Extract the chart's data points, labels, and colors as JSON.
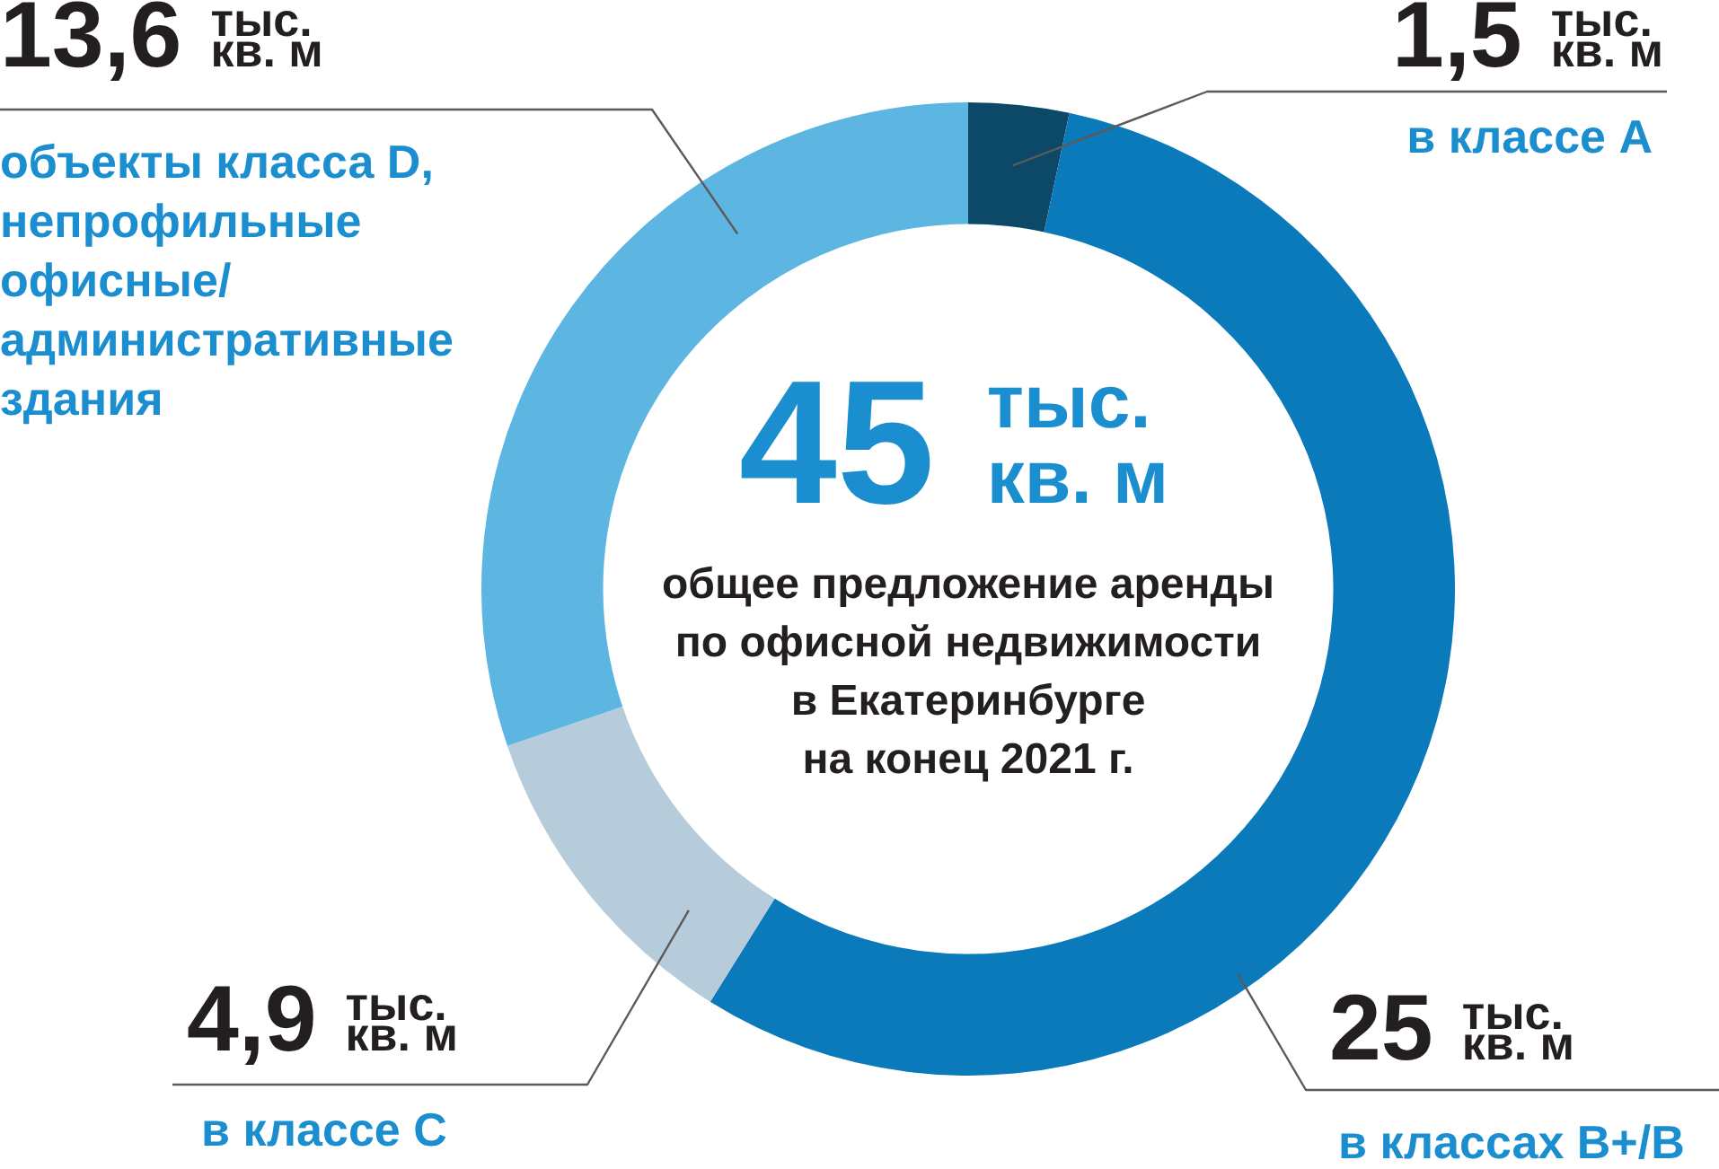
{
  "chart_data": {
    "type": "donut",
    "categories": [
      "в классе A",
      "в классах B+/B",
      "в классе C",
      "объекты класса D, непрофильные офисные/ административные здания"
    ],
    "values": [
      1.5,
      25,
      4.9,
      13.6
    ],
    "colors": [
      "#0c4868",
      "#0a7abb",
      "#b7ccdb",
      "#5db5e2"
    ],
    "value_labels": [
      "1,5 тыс. кв. м",
      "25 тыс. кв. м",
      "4,9 тыс. кв. м",
      "13,6 тыс. кв. м"
    ],
    "annotations": [
      "45 тыс. кв. м",
      "общее предложение аренды\nпо офисной недвижимости\nв Екатеринбурге\nна конец 2021 г."
    ]
  }
}
